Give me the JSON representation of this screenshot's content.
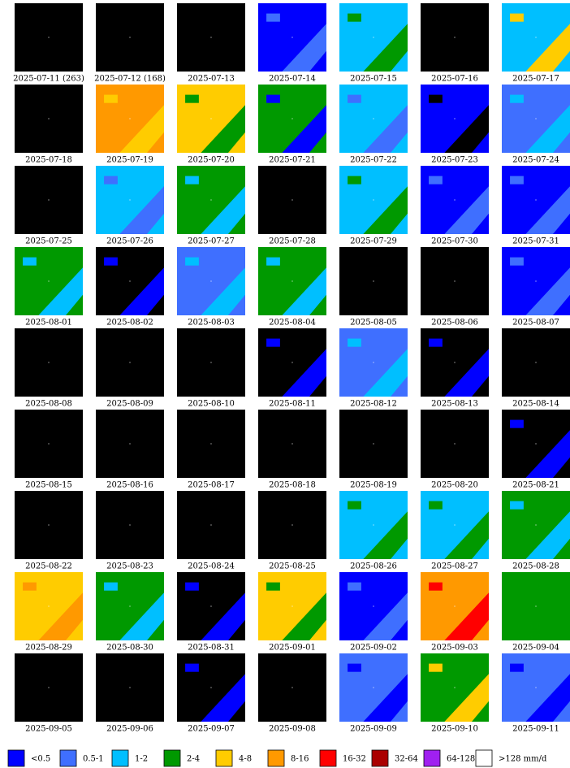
{
  "tiles": [
    {
      "label": "2025-07-11 (263)",
      "colors": [
        "#000000"
      ]
    },
    {
      "label": "2025-07-12 (168)",
      "colors": [
        "#000000"
      ]
    },
    {
      "label": "2025-07-13",
      "colors": [
        "#000000"
      ]
    },
    {
      "label": "2025-07-14",
      "colors": [
        "#0000ff",
        "#3f6fff"
      ]
    },
    {
      "label": "2025-07-15",
      "colors": [
        "#00bfff",
        "#009900"
      ]
    },
    {
      "label": "2025-07-16",
      "colors": [
        "#000000"
      ]
    },
    {
      "label": "2025-07-17",
      "colors": [
        "#00bfff",
        "#ffcc00"
      ]
    },
    {
      "label": "2025-07-18",
      "colors": [
        "#000000"
      ]
    },
    {
      "label": "2025-07-19",
      "colors": [
        "#ff9900",
        "#ffcc00"
      ]
    },
    {
      "label": "2025-07-20",
      "colors": [
        "#ffcc00",
        "#009900"
      ]
    },
    {
      "label": "2025-07-21",
      "colors": [
        "#009900",
        "#0000ff"
      ]
    },
    {
      "label": "2025-07-22",
      "colors": [
        "#00bfff",
        "#3f6fff"
      ]
    },
    {
      "label": "2025-07-23",
      "colors": [
        "#0000ff",
        "#000000"
      ]
    },
    {
      "label": "2025-07-24",
      "colors": [
        "#3f6fff",
        "#00bfff"
      ]
    },
    {
      "label": "2025-07-25",
      "colors": [
        "#000000"
      ]
    },
    {
      "label": "2025-07-26",
      "colors": [
        "#00bfff",
        "#3f6fff"
      ]
    },
    {
      "label": "2025-07-27",
      "colors": [
        "#009900",
        "#00bfff"
      ]
    },
    {
      "label": "2025-07-28",
      "colors": [
        "#000000"
      ]
    },
    {
      "label": "2025-07-29",
      "colors": [
        "#00bfff",
        "#009900"
      ]
    },
    {
      "label": "2025-07-30",
      "colors": [
        "#0000ff",
        "#3f6fff"
      ]
    },
    {
      "label": "2025-07-31",
      "colors": [
        "#0000ff",
        "#3f6fff"
      ]
    },
    {
      "label": "2025-08-01",
      "colors": [
        "#009900",
        "#00bfff"
      ]
    },
    {
      "label": "2025-08-02",
      "colors": [
        "#000000",
        "#0000ff"
      ]
    },
    {
      "label": "2025-08-03",
      "colors": [
        "#3f6fff",
        "#00bfff"
      ]
    },
    {
      "label": "2025-08-04",
      "colors": [
        "#009900",
        "#00bfff"
      ]
    },
    {
      "label": "2025-08-05",
      "colors": [
        "#000000"
      ]
    },
    {
      "label": "2025-08-06",
      "colors": [
        "#000000"
      ]
    },
    {
      "label": "2025-08-07",
      "colors": [
        "#0000ff",
        "#3f6fff"
      ]
    },
    {
      "label": "2025-08-08",
      "colors": [
        "#000000"
      ]
    },
    {
      "label": "2025-08-09",
      "colors": [
        "#000000"
      ]
    },
    {
      "label": "2025-08-10",
      "colors": [
        "#000000"
      ]
    },
    {
      "label": "2025-08-11",
      "colors": [
        "#000000",
        "#0000ff"
      ]
    },
    {
      "label": "2025-08-12",
      "colors": [
        "#3f6fff",
        "#00bfff"
      ]
    },
    {
      "label": "2025-08-13",
      "colors": [
        "#000000",
        "#0000ff"
      ]
    },
    {
      "label": "2025-08-14",
      "colors": [
        "#000000"
      ]
    },
    {
      "label": "2025-08-15",
      "colors": [
        "#000000"
      ]
    },
    {
      "label": "2025-08-16",
      "colors": [
        "#000000"
      ]
    },
    {
      "label": "2025-08-17",
      "colors": [
        "#000000"
      ]
    },
    {
      "label": "2025-08-18",
      "colors": [
        "#000000"
      ]
    },
    {
      "label": "2025-08-19",
      "colors": [
        "#000000"
      ]
    },
    {
      "label": "2025-08-20",
      "colors": [
        "#000000"
      ]
    },
    {
      "label": "2025-08-21",
      "colors": [
        "#000000",
        "#0000ff"
      ]
    },
    {
      "label": "2025-08-22",
      "colors": [
        "#000000"
      ]
    },
    {
      "label": "2025-08-23",
      "colors": [
        "#000000"
      ]
    },
    {
      "label": "2025-08-24",
      "colors": [
        "#000000"
      ]
    },
    {
      "label": "2025-08-25",
      "colors": [
        "#000000"
      ]
    },
    {
      "label": "2025-08-26",
      "colors": [
        "#00bfff",
        "#009900"
      ]
    },
    {
      "label": "2025-08-27",
      "colors": [
        "#00bfff",
        "#009900"
      ]
    },
    {
      "label": "2025-08-28",
      "colors": [
        "#009900",
        "#00bfff"
      ]
    },
    {
      "label": "2025-08-29",
      "colors": [
        "#ffcc00",
        "#ff9900"
      ]
    },
    {
      "label": "2025-08-30",
      "colors": [
        "#009900",
        "#00bfff"
      ]
    },
    {
      "label": "2025-08-31",
      "colors": [
        "#000000",
        "#0000ff"
      ]
    },
    {
      "label": "2025-09-01",
      "colors": [
        "#ffcc00",
        "#009900"
      ]
    },
    {
      "label": "2025-09-02",
      "colors": [
        "#0000ff",
        "#3f6fff"
      ]
    },
    {
      "label": "2025-09-03",
      "colors": [
        "#ff9900",
        "#ff0000"
      ]
    },
    {
      "label": "2025-09-04",
      "colors": [
        "#009900"
      ]
    },
    {
      "label": "2025-09-05",
      "colors": [
        "#000000"
      ]
    },
    {
      "label": "2025-09-06",
      "colors": [
        "#000000"
      ]
    },
    {
      "label": "2025-09-07",
      "colors": [
        "#000000",
        "#0000ff"
      ]
    },
    {
      "label": "2025-09-08",
      "colors": [
        "#000000"
      ]
    },
    {
      "label": "2025-09-09",
      "colors": [
        "#3f6fff",
        "#0000ff"
      ]
    },
    {
      "label": "2025-09-10",
      "colors": [
        "#009900",
        "#ffcc00"
      ]
    },
    {
      "label": "2025-09-11",
      "colors": [
        "#3f6fff",
        "#0000ff"
      ]
    }
  ],
  "legend": [
    {
      "label": "<0.5",
      "color": "#0000ff"
    },
    {
      "label": "0.5-1",
      "color": "#3f6fff"
    },
    {
      "label": "1-2",
      "color": "#00bfff"
    },
    {
      "label": "2-4",
      "color": "#009900"
    },
    {
      "label": "4-8",
      "color": "#ffcc00"
    },
    {
      "label": "8-16",
      "color": "#ff9900"
    },
    {
      "label": "16-32",
      "color": "#ff0000"
    },
    {
      "label": "32-64",
      "color": "#aa0000"
    },
    {
      "label": "64-128",
      "color": "#a020f0"
    },
    {
      "label": ">128 mm/d",
      "color": "#ffffff"
    }
  ]
}
